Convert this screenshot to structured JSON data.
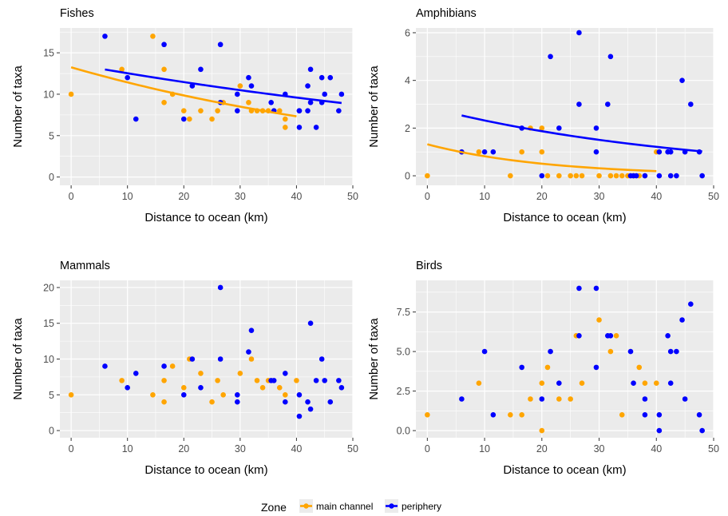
{
  "colors": {
    "main_channel": "#FFA500",
    "periphery": "#0000FF",
    "panel_bg": "#EBEBEB",
    "grid": "#FFFFFF"
  },
  "legend": {
    "title": "Zone",
    "items": [
      {
        "label": "main channel",
        "color": "#FFA500"
      },
      {
        "label": "periphery",
        "color": "#0000FF"
      }
    ]
  },
  "chart_data": [
    {
      "type": "scatter",
      "title": "Fishes",
      "xlabel": "Distance to ocean (km)",
      "ylabel": "Number of taxa",
      "xlim": [
        -2,
        50
      ],
      "ylim": [
        -1,
        18
      ],
      "xticks": [
        0,
        10,
        20,
        30,
        40,
        50
      ],
      "yticks": [
        0,
        5,
        10,
        15
      ],
      "ytick_labels": [
        "0",
        "5",
        "10",
        "15"
      ],
      "series": [
        {
          "name": "main channel",
          "color": "#FFA500",
          "points": [
            [
              0,
              10
            ],
            [
              9,
              13
            ],
            [
              14.5,
              17
            ],
            [
              16.5,
              13
            ],
            [
              16.5,
              9
            ],
            [
              18,
              10
            ],
            [
              20,
              8
            ],
            [
              21,
              7
            ],
            [
              23,
              8
            ],
            [
              25,
              7
            ],
            [
              26,
              8
            ],
            [
              27,
              9
            ],
            [
              30,
              11
            ],
            [
              31.5,
              9
            ],
            [
              32,
              8
            ],
            [
              33,
              8
            ],
            [
              34,
              8
            ],
            [
              35,
              8
            ],
            [
              36,
              8
            ],
            [
              37,
              8
            ],
            [
              38,
              6
            ],
            [
              38,
              7
            ]
          ],
          "trend": {
            "x": [
              0,
              40
            ],
            "a": 13.25,
            "b": -0.0148
          }
        },
        {
          "name": "periphery",
          "color": "#0000FF",
          "points": [
            [
              6,
              17
            ],
            [
              10,
              12
            ],
            [
              11.5,
              7
            ],
            [
              16.5,
              16
            ],
            [
              20,
              7
            ],
            [
              21.5,
              11
            ],
            [
              23,
              13
            ],
            [
              26.5,
              16
            ],
            [
              26.5,
              9
            ],
            [
              29.5,
              8
            ],
            [
              29.5,
              10
            ],
            [
              31.5,
              12
            ],
            [
              32,
              11
            ],
            [
              35.5,
              9
            ],
            [
              36,
              8
            ],
            [
              38,
              10
            ],
            [
              40.5,
              8
            ],
            [
              40.5,
              6
            ],
            [
              42,
              11
            ],
            [
              42.5,
              13
            ],
            [
              42.5,
              9
            ],
            [
              43.5,
              6
            ],
            [
              44.5,
              12
            ],
            [
              45,
              10
            ],
            [
              46,
              12
            ],
            [
              47.5,
              8
            ],
            [
              48,
              10
            ],
            [
              40.5,
              8
            ],
            [
              42,
              8
            ],
            [
              44.5,
              9
            ]
          ],
          "trend": {
            "x": [
              6,
              48
            ],
            "a": 13.7,
            "b": -0.0089
          }
        }
      ]
    },
    {
      "type": "scatter",
      "title": "Amphibians",
      "xlabel": "Distance to ocean (km)",
      "ylabel": "Number of taxa",
      "xlim": [
        -2,
        50
      ],
      "ylim": [
        -0.4,
        6.2
      ],
      "xticks": [
        0,
        10,
        20,
        30,
        40,
        50
      ],
      "yticks": [
        0,
        2,
        4,
        6
      ],
      "ytick_labels": [
        "0",
        "2",
        "4",
        "6"
      ],
      "series": [
        {
          "name": "main channel",
          "color": "#FFA500",
          "points": [
            [
              0,
              0
            ],
            [
              6,
              1
            ],
            [
              9,
              1
            ],
            [
              14.5,
              0
            ],
            [
              16.5,
              1
            ],
            [
              18,
              2
            ],
            [
              20,
              2
            ],
            [
              20,
              1
            ],
            [
              21,
              0
            ],
            [
              23,
              0
            ],
            [
              25,
              0
            ],
            [
              26,
              0
            ],
            [
              27,
              0
            ],
            [
              30,
              0
            ],
            [
              32,
              0
            ],
            [
              33,
              0
            ],
            [
              34,
              0
            ],
            [
              35,
              0
            ],
            [
              36,
              0
            ],
            [
              37,
              0
            ],
            [
              38,
              0
            ],
            [
              40,
              1
            ]
          ],
          "trend": {
            "x": [
              0,
              40
            ],
            "a": 1.32,
            "b": -0.0478
          }
        },
        {
          "name": "periphery",
          "color": "#0000FF",
          "points": [
            [
              6,
              1
            ],
            [
              10,
              1
            ],
            [
              11.5,
              1
            ],
            [
              16.5,
              2
            ],
            [
              20,
              0
            ],
            [
              21.5,
              5
            ],
            [
              23,
              2
            ],
            [
              26.5,
              6
            ],
            [
              26.5,
              3
            ],
            [
              29.5,
              1
            ],
            [
              29.5,
              2
            ],
            [
              31.5,
              3
            ],
            [
              32,
              5
            ],
            [
              35.5,
              0
            ],
            [
              36,
              0
            ],
            [
              38,
              0
            ],
            [
              40.5,
              0
            ],
            [
              40.5,
              1
            ],
            [
              42,
              1
            ],
            [
              42.5,
              1
            ],
            [
              42.5,
              0
            ],
            [
              43.5,
              0
            ],
            [
              44.5,
              4
            ],
            [
              45,
              1
            ],
            [
              46,
              3
            ],
            [
              47.5,
              1
            ],
            [
              48,
              0
            ],
            [
              36.5,
              0
            ]
          ],
          "trend": {
            "x": [
              6,
              48
            ],
            "a": 2.88,
            "b": -0.0216
          }
        }
      ]
    },
    {
      "type": "scatter",
      "title": "Mammals",
      "xlabel": "Distance to ocean (km)",
      "ylabel": "Number of taxa",
      "xlim": [
        -2,
        50
      ],
      "ylim": [
        -1,
        21
      ],
      "xticks": [
        0,
        10,
        20,
        30,
        40,
        50
      ],
      "yticks": [
        0,
        5,
        10,
        15,
        20
      ],
      "ytick_labels": [
        "0",
        "5",
        "10",
        "15",
        "20"
      ],
      "series": [
        {
          "name": "main channel",
          "color": "#FFA500",
          "points": [
            [
              0,
              5
            ],
            [
              9,
              7
            ],
            [
              14.5,
              5
            ],
            [
              16.5,
              7
            ],
            [
              16.5,
              4
            ],
            [
              18,
              9
            ],
            [
              20,
              6
            ],
            [
              21,
              10
            ],
            [
              23,
              8
            ],
            [
              25,
              4
            ],
            [
              26,
              7
            ],
            [
              27,
              5
            ],
            [
              30,
              8
            ],
            [
              32,
              10
            ],
            [
              33,
              7
            ],
            [
              34,
              6
            ],
            [
              35,
              7
            ],
            [
              37,
              6
            ],
            [
              38,
              5
            ],
            [
              40,
              7
            ]
          ],
          "trend": null
        },
        {
          "name": "periphery",
          "color": "#0000FF",
          "points": [
            [
              6,
              9
            ],
            [
              10,
              6
            ],
            [
              11.5,
              8
            ],
            [
              16.5,
              9
            ],
            [
              20,
              5
            ],
            [
              21.5,
              10
            ],
            [
              23,
              6
            ],
            [
              26.5,
              20
            ],
            [
              26.5,
              10
            ],
            [
              29.5,
              4
            ],
            [
              29.5,
              5
            ],
            [
              31.5,
              11
            ],
            [
              32,
              14
            ],
            [
              35.5,
              7
            ],
            [
              36,
              7
            ],
            [
              38,
              8
            ],
            [
              38,
              4
            ],
            [
              40.5,
              5
            ],
            [
              40.5,
              2
            ],
            [
              42,
              4
            ],
            [
              42.5,
              15
            ],
            [
              42.5,
              3
            ],
            [
              43.5,
              7
            ],
            [
              44.5,
              10
            ],
            [
              45,
              7
            ],
            [
              46,
              4
            ],
            [
              47.5,
              7
            ],
            [
              48,
              6
            ]
          ],
          "trend": null
        }
      ]
    },
    {
      "type": "scatter",
      "title": "Birds",
      "xlabel": "Distance to ocean (km)",
      "ylabel": "Number of taxa",
      "xlim": [
        -2,
        50
      ],
      "ylim": [
        -0.45,
        9.5
      ],
      "xticks": [
        0,
        10,
        20,
        30,
        40,
        50
      ],
      "yticks": [
        0,
        2.5,
        5,
        7.5
      ],
      "ytick_labels": [
        "0.0",
        "2.5",
        "5.0",
        "7.5"
      ],
      "series": [
        {
          "name": "main channel",
          "color": "#FFA500",
          "points": [
            [
              0,
              1
            ],
            [
              9,
              3
            ],
            [
              14.5,
              1
            ],
            [
              16.5,
              1
            ],
            [
              18,
              2
            ],
            [
              20,
              3
            ],
            [
              20,
              0
            ],
            [
              21,
              4
            ],
            [
              23,
              2
            ],
            [
              25,
              2
            ],
            [
              26,
              6
            ],
            [
              27,
              3
            ],
            [
              30,
              7
            ],
            [
              32,
              5
            ],
            [
              33,
              6
            ],
            [
              34,
              1
            ],
            [
              37,
              4
            ],
            [
              38,
              3
            ],
            [
              40,
              3
            ]
          ],
          "trend": null
        },
        {
          "name": "periphery",
          "color": "#0000FF",
          "points": [
            [
              6,
              2
            ],
            [
              10,
              5
            ],
            [
              11.5,
              1
            ],
            [
              16.5,
              4
            ],
            [
              20,
              2
            ],
            [
              21.5,
              5
            ],
            [
              23,
              3
            ],
            [
              26.5,
              9
            ],
            [
              26.5,
              6
            ],
            [
              29.5,
              9
            ],
            [
              29.5,
              4
            ],
            [
              31.5,
              6
            ],
            [
              32,
              6
            ],
            [
              35.5,
              5
            ],
            [
              36,
              3
            ],
            [
              38,
              2
            ],
            [
              38,
              1
            ],
            [
              40.5,
              1
            ],
            [
              40.5,
              0
            ],
            [
              42,
              6
            ],
            [
              42.5,
              5
            ],
            [
              42.5,
              3
            ],
            [
              43.5,
              5
            ],
            [
              44.5,
              7
            ],
            [
              45,
              2
            ],
            [
              46,
              8
            ],
            [
              47.5,
              1
            ],
            [
              48,
              0
            ]
          ],
          "trend": null
        }
      ]
    }
  ]
}
